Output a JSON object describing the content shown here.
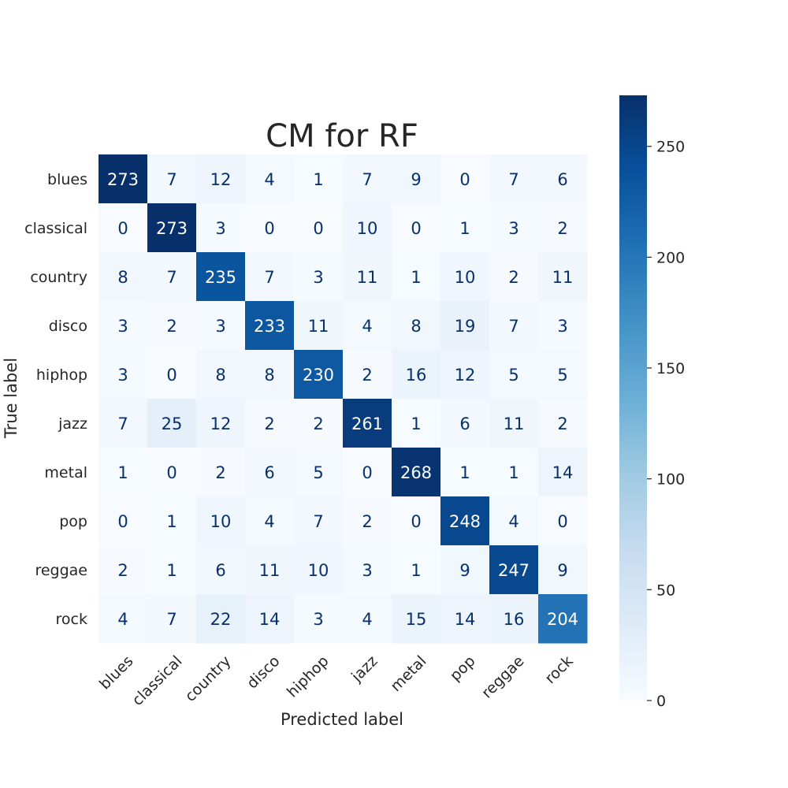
{
  "chart_data": {
    "type": "heatmap",
    "title": "CM for RF",
    "xlabel": "Predicted label",
    "ylabel": "True label",
    "x_categories": [
      "blues",
      "classical",
      "country",
      "disco",
      "hiphop",
      "jazz",
      "metal",
      "pop",
      "reggae",
      "rock"
    ],
    "y_categories": [
      "blues",
      "classical",
      "country",
      "disco",
      "hiphop",
      "jazz",
      "metal",
      "pop",
      "reggae",
      "rock"
    ],
    "values": [
      [
        273,
        7,
        12,
        4,
        1,
        7,
        9,
        0,
        7,
        6
      ],
      [
        0,
        273,
        3,
        0,
        0,
        10,
        0,
        1,
        3,
        2
      ],
      [
        8,
        7,
        235,
        7,
        3,
        11,
        1,
        10,
        2,
        11
      ],
      [
        3,
        2,
        3,
        233,
        11,
        4,
        8,
        19,
        7,
        3
      ],
      [
        3,
        0,
        8,
        8,
        230,
        2,
        16,
        12,
        5,
        5
      ],
      [
        7,
        25,
        12,
        2,
        2,
        261,
        1,
        6,
        11,
        2
      ],
      [
        1,
        0,
        2,
        6,
        5,
        0,
        268,
        1,
        1,
        14
      ],
      [
        0,
        1,
        10,
        4,
        7,
        2,
        0,
        248,
        4,
        0
      ],
      [
        2,
        1,
        6,
        11,
        10,
        3,
        1,
        9,
        247,
        9
      ],
      [
        4,
        7,
        22,
        14,
        3,
        4,
        15,
        14,
        16,
        204
      ]
    ],
    "colormap": "Blues",
    "color_range": [
      0,
      273
    ],
    "colorbar_ticks": [
      0,
      50,
      100,
      150,
      200,
      250
    ],
    "grid": false
  }
}
